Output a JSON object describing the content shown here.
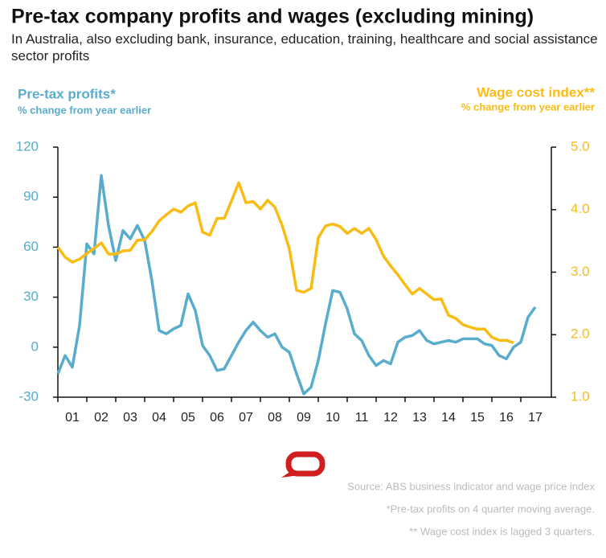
{
  "chart_data": {
    "type": "line",
    "title": "Pre-tax company profits and wages (excluding mining)",
    "subtitle": "In Australia, also excluding bank, insurance, education, training, healthcare and social assistance sector profits",
    "y_label": "Pre-tax profits*",
    "y_sublabel": "% change from year earlier",
    "y2_label": "Wage cost index**",
    "y2_sublabel": "% change from year earlier",
    "notes": [
      "Source: ABS business indicator and wage price index",
      "*Pre-tax profits on 4 quarter moving average.",
      "** Wage cost index is lagged 3 quarters."
    ],
    "categories": [
      null,
      null,
      "01",
      null,
      null,
      null,
      "02",
      null,
      null,
      null,
      "03",
      null,
      null,
      null,
      "04",
      null,
      null,
      null,
      "05",
      null,
      null,
      null,
      "06",
      null,
      null,
      null,
      "07",
      null,
      null,
      null,
      "08",
      null,
      null,
      null,
      "09",
      null,
      null,
      null,
      "10",
      null,
      null,
      null,
      "11",
      null,
      null,
      null,
      "12",
      null,
      null,
      null,
      "13",
      null,
      null,
      null,
      "14",
      null,
      null,
      null,
      "15",
      null,
      null,
      null,
      "16",
      null,
      null,
      null,
      "17"
    ],
    "series": [
      {
        "name": "Pre-tax profits*",
        "color": "#5aaccc",
        "axis": "y",
        "values": [
          -16,
          -5,
          -12,
          13,
          62,
          56,
          103,
          73,
          52,
          70,
          65,
          73,
          64,
          40,
          10,
          8,
          11,
          13,
          32,
          22,
          1,
          -5,
          -14,
          -13,
          -5,
          3,
          10,
          15,
          10,
          6,
          8,
          0,
          -3,
          -16,
          -28,
          -24,
          -8,
          14,
          34,
          33,
          23,
          8,
          4,
          -5,
          -11,
          -8,
          -10,
          3,
          6,
          7,
          10,
          4,
          2,
          3,
          4,
          3,
          5,
          5,
          5,
          2,
          1,
          -5,
          -7,
          0,
          3,
          18,
          24
        ]
      },
      {
        "name": "Wage cost index**",
        "color": "#f9bc15",
        "axis": "y2",
        "values": [
          3.4,
          3.24,
          3.16,
          3.21,
          3.3,
          3.38,
          3.47,
          3.29,
          3.29,
          3.34,
          3.35,
          3.51,
          3.52,
          3.65,
          3.82,
          3.92,
          4.01,
          3.96,
          4.06,
          4.11,
          3.64,
          3.59,
          3.86,
          3.86,
          4.14,
          4.43,
          4.11,
          4.13,
          4.01,
          4.15,
          4.04,
          3.75,
          3.37,
          2.71,
          2.68,
          2.74,
          3.55,
          3.74,
          3.77,
          3.73,
          3.62,
          3.7,
          3.62,
          3.7,
          3.52,
          3.26,
          3.1,
          2.96,
          2.8,
          2.65,
          2.74,
          2.65,
          2.56,
          2.57,
          2.31,
          2.26,
          2.16,
          2.12,
          2.09,
          2.09,
          1.96,
          1.91,
          1.91,
          1.87,
          null,
          null,
          null
        ]
      }
    ],
    "ylim": [
      -30,
      120
    ],
    "yticks": [
      -30,
      0,
      30,
      60,
      90,
      120
    ],
    "y2lim": [
      1,
      5
    ],
    "y2ticks": [
      {
        "value": 1,
        "label": "1.0"
      },
      {
        "value": 2,
        "label": "2.0"
      },
      {
        "value": 3,
        "label": "3.0"
      },
      {
        "value": 4,
        "label": "4.0"
      },
      {
        "value": 5,
        "label": "5.0"
      }
    ]
  }
}
